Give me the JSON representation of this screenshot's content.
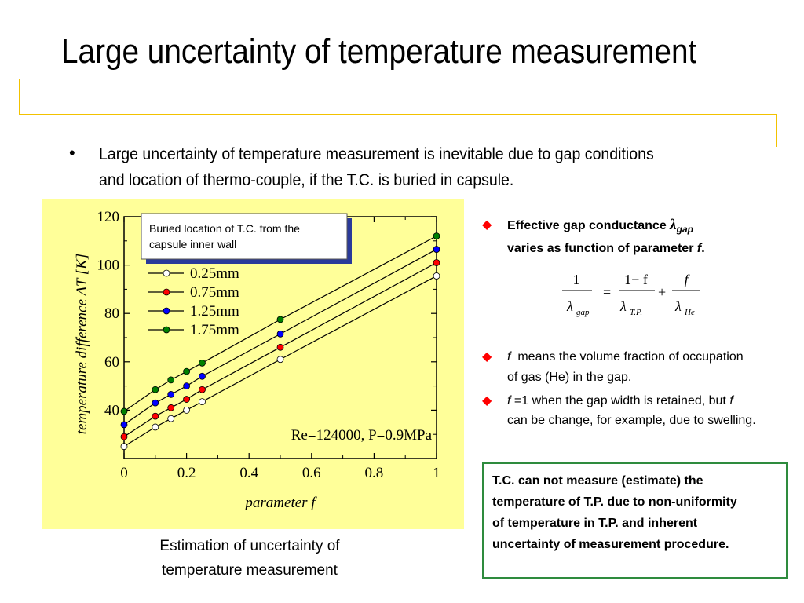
{
  "slide": {
    "title": "Large uncertainty of temperature measurement",
    "bullet": "Large uncertainty of temperature measurement is inevitable due to gap conditions and location of thermo-couple, if the T.C. is buried in capsule.",
    "caption_line1": "Estimation of uncertainty of",
    "caption_line2": "temperature measurement"
  },
  "right": {
    "item1_line1": "Effective gap conductance",
    "item1_lambda": "λ",
    "item1_gap": "gap",
    "item1_line2": "varies as function of parameter",
    "item1_f": "f",
    "item1_end": ".",
    "formula": {
      "lhs_num": "1",
      "lhs_den_sym": "λ",
      "lhs_den_sub": "gap",
      "eq": "=",
      "t1_num": "1− f",
      "t1_den_sym": "λ",
      "t1_den_sub": "T.P.",
      "plus": "+",
      "t2_num": "f",
      "t2_den_sym": "λ",
      "t2_den_sub": "He"
    },
    "item2_f": "f",
    "item2_line1": "means the volume fraction of occupation",
    "item2_line2": "of gas (He) in the gap.",
    "item3_f": "f",
    "item3_line1a": "=1 when the gap width is retained, but",
    "item3_f2": "f",
    "item3_line2": "can be change, for example, due to swelling.",
    "box_text_lines": [
      "T.C. can not measure (estimate) the",
      "temperature of T.P. due to non-uniformity",
      "of temperature in T.P. and inherent",
      "uncertainty of  measurement procedure."
    ]
  },
  "chart_data": {
    "type": "line",
    "xlabel": "parameter f",
    "ylabel": "temperature difference  ΔT [K]",
    "xlim": [
      0,
      1
    ],
    "ylim": [
      20,
      120
    ],
    "xticks": [
      "0",
      "0.2",
      "0.4",
      "0.6",
      "0.8",
      "1"
    ],
    "yticks": [
      "40",
      "60",
      "80",
      "100",
      "120"
    ],
    "ytick_values": [
      40,
      60,
      80,
      100,
      120
    ],
    "xtick_values": [
      0,
      0.2,
      0.4,
      0.6,
      0.8,
      1
    ],
    "annotation": "Re=124000, P=0.9MPa",
    "legend_box": "Buried location of T.C. from the capsule inner wall",
    "legend_box_line1": "Buried location of T.C. from the",
    "legend_box_line2": "capsule inner wall",
    "legend_placement": "top-left",
    "x": [
      0,
      0.1,
      0.15,
      0.2,
      0.25,
      0.5,
      1.0
    ],
    "series": [
      {
        "name": "0.25mm",
        "color": "#ffffff",
        "values": [
          25,
          33,
          36.5,
          40,
          43.5,
          61,
          95.5
        ]
      },
      {
        "name": "0.75mm",
        "color": "#ff0000",
        "values": [
          29,
          37.5,
          41,
          44.5,
          48.5,
          66,
          101
        ]
      },
      {
        "name": "1.25mm",
        "color": "#0000ff",
        "values": [
          34,
          43,
          46.5,
          50,
          54,
          71.5,
          106.5
        ]
      },
      {
        "name": "1.75mm",
        "color": "#008000",
        "values": [
          39.5,
          48.5,
          52.5,
          56,
          59.5,
          77.5,
          112
        ]
      }
    ]
  }
}
